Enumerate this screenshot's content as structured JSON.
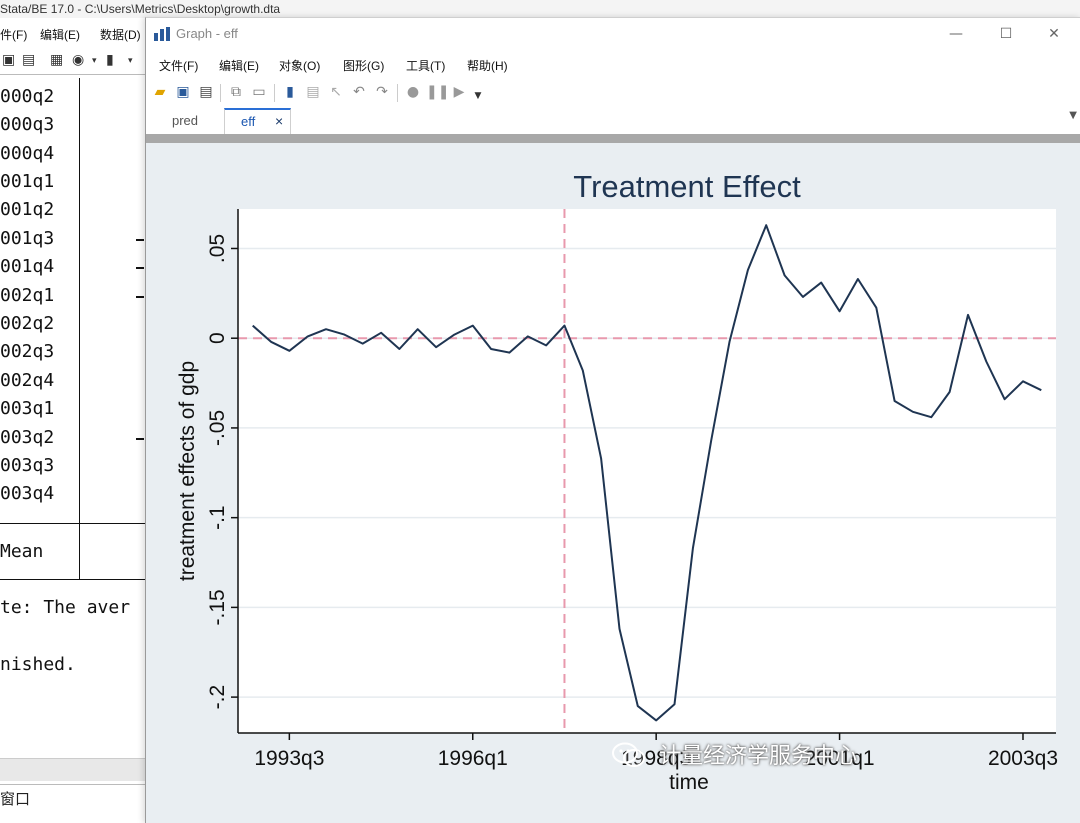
{
  "main_window": {
    "title": "Stata/BE 17.0 - C:\\Users\\Metrics\\Desktop\\growth.dta",
    "menus": [
      "件(F)",
      "编辑(E)",
      "数据(D)"
    ],
    "results": {
      "rows": [
        "000q2",
        "000q3",
        "000q4",
        "001q1",
        "001q2",
        "001q3",
        "001q4",
        "002q1",
        "002q2",
        "002q3",
        "002q4",
        "003q1",
        "003q2",
        "003q3",
        "003q4"
      ],
      "mean_label": "Mean",
      "note_text": "te: The aver",
      "finished_text": "nished."
    },
    "command_tab": "窗口"
  },
  "graph_window": {
    "title": "Graph - eff",
    "menus": [
      "文件(F)",
      "编辑(E)",
      "对象(O)",
      "图形(G)",
      "工具(T)",
      "帮助(H)"
    ],
    "tabs": [
      {
        "label": "pred",
        "active": false
      },
      {
        "label": "eff",
        "active": true
      }
    ],
    "tab_close_icon": "×",
    "window_controls": [
      "minimize",
      "maximize",
      "close"
    ]
  },
  "chart_data": {
    "type": "line",
    "title": "Treatment Effect",
    "xlabel": "time",
    "ylabel": "treatment effects of gdp",
    "x_tick_labels": [
      "1993q3",
      "1996q1",
      "1998q3",
      "2001q1",
      "2003q3"
    ],
    "x_tick_values": [
      134,
      144,
      154,
      164,
      174
    ],
    "y_tick_labels": [
      ".05",
      "0",
      "-.05",
      "-.1",
      "-.15",
      "-.2"
    ],
    "y_tick_values": [
      0.05,
      0,
      -0.05,
      -0.1,
      -0.15,
      -0.2
    ],
    "xlim": [
      131.2,
      175.8
    ],
    "ylim": [
      -0.22,
      0.072
    ],
    "treatment_time": 149,
    "reference_y": 0,
    "grid": "horizontal",
    "line_color": "#1f3552",
    "reference_color": "#e899ad",
    "background_color": "#e9eef2",
    "plot_region_color": "#ffffff",
    "series": [
      {
        "x": [
          132,
          133,
          134,
          135,
          136,
          137,
          138,
          139,
          140,
          141,
          142,
          143,
          144,
          145,
          146,
          147,
          148,
          149,
          150,
          151,
          152,
          153,
          154,
          155,
          156,
          157,
          158,
          159,
          160,
          161,
          162,
          163,
          164,
          165,
          166,
          167,
          168,
          169,
          170,
          171,
          172,
          173,
          174,
          175
        ],
        "values": [
          0.007,
          -0.002,
          -0.007,
          0.001,
          0.005,
          0.002,
          -0.003,
          0.003,
          -0.006,
          0.005,
          -0.005,
          0.002,
          0.007,
          -0.006,
          -0.008,
          0.001,
          -0.004,
          0.007,
          -0.018,
          -0.067,
          -0.162,
          -0.205,
          -0.213,
          -0.204,
          -0.117,
          -0.057,
          -0.002,
          0.038,
          0.063,
          0.035,
          0.023,
          0.031,
          0.015,
          0.033,
          0.017,
          -0.035,
          -0.041,
          -0.044,
          -0.03,
          0.013,
          -0.013,
          -0.034,
          -0.024,
          -0.029
        ]
      }
    ]
  },
  "watermark": "计量经济学服务中心"
}
